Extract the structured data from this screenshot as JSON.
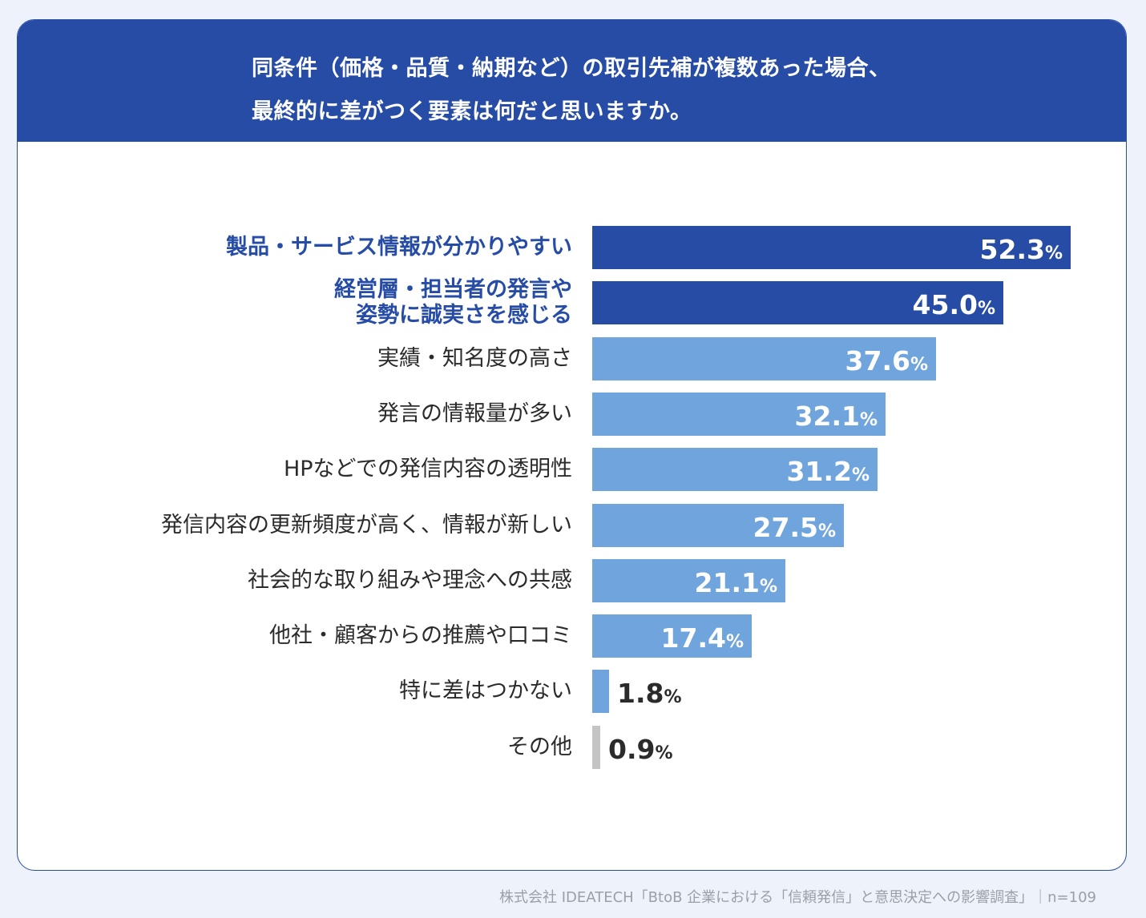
{
  "header": {
    "line1": "同条件（価格・品質・納期など）の取引先補が複数あった場合、",
    "line2": "最終的に差がつく要素は何だと思いますか。"
  },
  "chart_data": {
    "type": "bar",
    "orientation": "horizontal",
    "title": "同条件（価格・品質・納期など）の取引先補が複数あった場合、最終的に差がつく要素は何だと思いますか。",
    "unit": "%",
    "xlim": [
      0,
      60
    ],
    "categories": [
      [
        "製品・サービス情報が分かりやすい"
      ],
      [
        "経営層・担当者の発言や",
        "姿勢に誠実さを感じる"
      ],
      [
        "実績・知名度の高さ"
      ],
      [
        "発言の情報量が多い"
      ],
      [
        "HPなどでの発信内容の透明性"
      ],
      [
        "発信内容の更新頻度が高く、情報が新しい"
      ],
      [
        "社会的な取り組みや理念への共感"
      ],
      [
        "他社・顧客からの推薦や口コミ"
      ],
      [
        "特に差はつかない"
      ],
      [
        "その他"
      ]
    ],
    "values": [
      52.3,
      45.0,
      37.6,
      32.1,
      31.2,
      27.5,
      21.1,
      17.4,
      1.8,
      0.9
    ],
    "value_labels": [
      "52.3",
      "45.0",
      "37.6",
      "32.1",
      "31.2",
      "27.5",
      "21.1",
      "17.4",
      "1.8",
      "0.9"
    ],
    "highlight": [
      true,
      true,
      false,
      false,
      false,
      false,
      false,
      false,
      false,
      false
    ],
    "other": [
      false,
      false,
      false,
      false,
      false,
      false,
      false,
      false,
      false,
      true
    ],
    "percent_symbol": "%"
  },
  "colors": {
    "highlight": "#264ca6",
    "normal": "#6fa5dc",
    "other": "#c4c4c4"
  },
  "footer": {
    "source": "株式会社 IDEATECH「BtoB 企業における「信頼発信」と意思決定への影響調査」｜n=109"
  }
}
